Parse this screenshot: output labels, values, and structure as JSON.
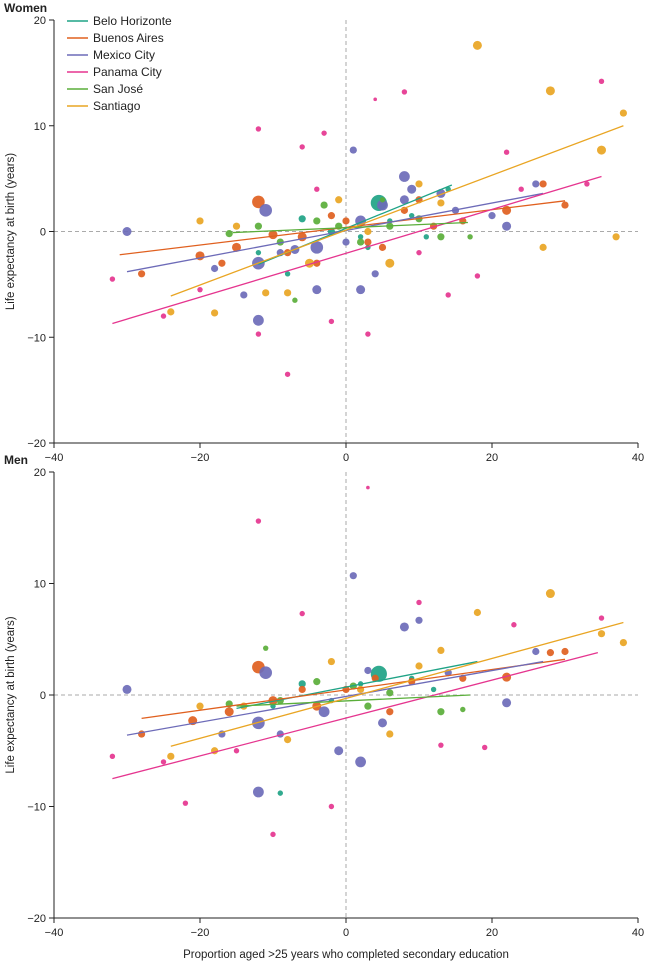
{
  "chart_data": [
    {
      "type": "scatter",
      "title": "Women",
      "xlabel": "Proportion aged >25 years who completed secondary education",
      "ylabel": "Life expectancy at birth (years)",
      "xlim": [
        -40,
        40
      ],
      "ylim": [
        -20,
        20
      ],
      "xticks": [
        "−40",
        "−20",
        "0",
        "20",
        "40"
      ],
      "yticks": [
        "20",
        "10",
        "0",
        "−10",
        "−20"
      ],
      "legend_position": "top-left",
      "series": [
        {
          "name": "Belo Horizonte",
          "color": "#1fa386",
          "line": [
            [
              -12,
              -3.1
            ],
            [
              14.5,
              4.4
            ]
          ],
          "points": [
            [
              4.5,
              2.7,
              9
            ],
            [
              -6,
              1.2,
              4
            ],
            [
              -2,
              0,
              4
            ],
            [
              9,
              1.5,
              3
            ],
            [
              3,
              -1.5,
              3
            ],
            [
              -12,
              -2,
              3
            ],
            [
              11,
              -0.5,
              3
            ],
            [
              14,
              4,
              3
            ],
            [
              -8,
              -4,
              3
            ],
            [
              2,
              -0.5,
              3
            ],
            [
              6,
              1,
              3
            ]
          ]
        },
        {
          "name": "Buenos Aires",
          "color": "#e0601f",
          "line": [
            [
              -31,
              -2.2
            ],
            [
              30,
              2.9
            ]
          ],
          "points": [
            [
              -12,
              2.8,
              7
            ],
            [
              -28,
              -4,
              4
            ],
            [
              -20,
              -2.3,
              5
            ],
            [
              -15,
              -1.5,
              5
            ],
            [
              -10,
              -0.3,
              5
            ],
            [
              -6,
              -0.5,
              5
            ],
            [
              -4,
              -3,
              4
            ],
            [
              0,
              1,
              4
            ],
            [
              3,
              -1,
              4
            ],
            [
              8,
              2,
              4
            ],
            [
              12,
              0.5,
              4
            ],
            [
              16,
              1,
              4
            ],
            [
              22,
              2,
              5
            ],
            [
              27,
              4.5,
              4
            ],
            [
              30,
              2.5,
              4
            ],
            [
              -17,
              -3,
              4
            ],
            [
              -8,
              -2,
              4
            ],
            [
              5,
              -1.5,
              4
            ],
            [
              10,
              3,
              4
            ],
            [
              -2,
              1.5,
              4
            ]
          ]
        },
        {
          "name": "Mexico City",
          "color": "#6d6bb8",
          "line": [
            [
              -30,
              -3.8
            ],
            [
              27,
              3.6
            ]
          ],
          "points": [
            [
              -30,
              0,
              5
            ],
            [
              -11,
              2,
              7
            ],
            [
              -12,
              -3,
              7
            ],
            [
              -12,
              -8.4,
              6
            ],
            [
              -4,
              -1.5,
              7
            ],
            [
              -7,
              -1.7,
              5
            ],
            [
              2,
              1,
              6
            ],
            [
              5,
              2.5,
              6
            ],
            [
              8,
              5.2,
              6
            ],
            [
              8,
              3,
              5
            ],
            [
              9,
              4,
              5
            ],
            [
              -4,
              -5.5,
              5
            ],
            [
              2,
              -5.5,
              5
            ],
            [
              1,
              7.7,
              4
            ],
            [
              13,
              3.6,
              5
            ],
            [
              -14,
              -6,
              4
            ],
            [
              20,
              1.5,
              4
            ],
            [
              26,
              4.5,
              4
            ],
            [
              22,
              0.5,
              5
            ],
            [
              -18,
              -3.5,
              4
            ],
            [
              4,
              -4,
              4
            ],
            [
              0,
              -1,
              4
            ],
            [
              -9,
              -2,
              4
            ],
            [
              15,
              2,
              4
            ]
          ]
        },
        {
          "name": "Panama City",
          "color": "#e5358f",
          "line": [
            [
              -32,
              -8.7
            ],
            [
              35,
              5.2
            ]
          ],
          "points": [
            [
              -32,
              -4.5,
              3
            ],
            [
              -25,
              -8,
              3
            ],
            [
              -12,
              9.7,
              3
            ],
            [
              -6,
              8,
              3
            ],
            [
              -3,
              9.3,
              3
            ],
            [
              -8,
              -13.5,
              3
            ],
            [
              4,
              12.5,
              2
            ],
            [
              8,
              13.2,
              3
            ],
            [
              35,
              14.2,
              3
            ],
            [
              22,
              7.5,
              3
            ],
            [
              33,
              4.5,
              3
            ],
            [
              18,
              -4.2,
              3
            ],
            [
              -2,
              -8.5,
              3
            ],
            [
              3,
              -9.7,
              3
            ],
            [
              -12,
              -9.7,
              3
            ],
            [
              10,
              -2,
              3
            ],
            [
              24,
              4,
              3
            ],
            [
              -20,
              -5.5,
              3
            ],
            [
              14,
              -6,
              3
            ],
            [
              -4,
              4,
              3
            ]
          ]
        },
        {
          "name": "San José",
          "color": "#5aae3a",
          "line": [
            [
              -15.5,
              -0.1
            ],
            [
              16.7,
              0.85
            ]
          ],
          "points": [
            [
              -16,
              -0.2,
              4
            ],
            [
              -9,
              -1,
              4
            ],
            [
              -4,
              1,
              4
            ],
            [
              -1,
              0.5,
              4
            ],
            [
              2,
              -1,
              4
            ],
            [
              6,
              0.5,
              4
            ],
            [
              10,
              1.2,
              4
            ],
            [
              13,
              -0.5,
              4
            ],
            [
              -7,
              -6.5,
              3
            ],
            [
              -3,
              2.5,
              4
            ],
            [
              17,
              -0.5,
              3
            ],
            [
              -12,
              0.5,
              4
            ],
            [
              5,
              3,
              3
            ]
          ]
        },
        {
          "name": "Santiago",
          "color": "#e9a523",
          "line": [
            [
              -24,
              -6.1
            ],
            [
              38,
              10
            ]
          ],
          "points": [
            [
              18,
              17.6,
              5
            ],
            [
              28,
              13.3,
              5
            ],
            [
              38,
              11.2,
              4
            ],
            [
              35,
              7.7,
              5
            ],
            [
              -24,
              -7.6,
              4
            ],
            [
              -18,
              -7.7,
              4
            ],
            [
              -8,
              -5.8,
              4
            ],
            [
              -11,
              -5.8,
              4
            ],
            [
              -1,
              3,
              4
            ],
            [
              -5,
              -3,
              5
            ],
            [
              10,
              4.5,
              4
            ],
            [
              6,
              -3,
              5
            ],
            [
              -15,
              0.5,
              4
            ],
            [
              27,
              -1.5,
              4
            ],
            [
              37,
              -0.5,
              4
            ],
            [
              -20,
              1,
              4
            ],
            [
              13,
              2.7,
              4
            ],
            [
              3,
              0,
              4
            ]
          ]
        }
      ]
    },
    {
      "type": "scatter",
      "title": "Men",
      "xlabel": "Proportion aged >25 years who completed secondary education",
      "ylabel": "Life expectancy at birth (years)",
      "xlim": [
        -40,
        40
      ],
      "ylim": [
        -20,
        20
      ],
      "xticks": [
        "−40",
        "−20",
        "0",
        "20",
        "40"
      ],
      "yticks": [
        "20",
        "10",
        "0",
        "−10",
        "−20"
      ],
      "series": [
        {
          "name": "Belo Horizonte",
          "color": "#1fa386",
          "line": [
            [
              -15,
              -1.2
            ],
            [
              18,
              3
            ]
          ],
          "points": [
            [
              4.5,
              1.9,
              9
            ],
            [
              -6,
              1,
              4
            ],
            [
              -2,
              -0.5,
              3
            ],
            [
              9,
              1.5,
              3
            ],
            [
              12,
              0.5,
              3
            ],
            [
              -10,
              -1,
              3
            ],
            [
              2,
              1,
              3
            ],
            [
              -9,
              -8.8,
              3
            ]
          ]
        },
        {
          "name": "Buenos Aires",
          "color": "#e0601f",
          "line": [
            [
              -28,
              -2.1
            ],
            [
              30,
              3.2
            ]
          ],
          "points": [
            [
              -12,
              2.5,
              7
            ],
            [
              -28,
              -3.5,
              4
            ],
            [
              -21,
              -2.3,
              5
            ],
            [
              -16,
              -1.5,
              5
            ],
            [
              -10,
              -0.5,
              5
            ],
            [
              -4,
              -1,
              5
            ],
            [
              0,
              0.5,
              4
            ],
            [
              4,
              1.5,
              4
            ],
            [
              9,
              1.2,
              4
            ],
            [
              16,
              1.5,
              4
            ],
            [
              22,
              1.6,
              5
            ],
            [
              28,
              3.8,
              4
            ],
            [
              30,
              3.9,
              4
            ],
            [
              -6,
              0.5,
              4
            ],
            [
              6,
              -1.5,
              4
            ]
          ]
        },
        {
          "name": "Mexico City",
          "color": "#6d6bb8",
          "line": [
            [
              -30,
              -3.6
            ],
            [
              27,
              3
            ]
          ],
          "points": [
            [
              -30,
              0.5,
              5
            ],
            [
              -11,
              2,
              7
            ],
            [
              -12,
              -2.5,
              7
            ],
            [
              -12,
              -8.7,
              6
            ],
            [
              -3,
              -1.5,
              6
            ],
            [
              2,
              -6,
              6
            ],
            [
              1,
              10.7,
              4
            ],
            [
              8,
              6.1,
              5
            ],
            [
              10,
              6.7,
              4
            ],
            [
              -1,
              -5,
              5
            ],
            [
              5,
              -2.5,
              5
            ],
            [
              22,
              -0.7,
              5
            ],
            [
              26,
              3.9,
              4
            ],
            [
              -9,
              -3.5,
              4
            ],
            [
              -17,
              -3.5,
              4
            ],
            [
              14,
              2,
              4
            ],
            [
              3,
              2.2,
              4
            ]
          ]
        },
        {
          "name": "Panama City",
          "color": "#e5358f",
          "line": [
            [
              -32,
              -7.5
            ],
            [
              34.5,
              3.8
            ]
          ],
          "points": [
            [
              -32,
              -5.5,
              3
            ],
            [
              -12,
              15.6,
              3
            ],
            [
              3,
              18.6,
              2
            ],
            [
              -22,
              -9.7,
              3
            ],
            [
              -10,
              -12.5,
              3
            ],
            [
              -2,
              -10,
              3
            ],
            [
              35,
              6.9,
              3
            ],
            [
              23,
              6.3,
              3
            ],
            [
              -6,
              7.3,
              3
            ],
            [
              19,
              -4.7,
              3
            ],
            [
              10,
              8.3,
              3
            ],
            [
              -25,
              -6,
              3
            ],
            [
              13,
              -4.5,
              3
            ],
            [
              -15,
              -5,
              3
            ]
          ]
        },
        {
          "name": "San José",
          "color": "#5aae3a",
          "line": [
            [
              -15,
              -1
            ],
            [
              17,
              0
            ]
          ],
          "points": [
            [
              -16,
              -0.8,
              4
            ],
            [
              -9,
              -0.5,
              4
            ],
            [
              -4,
              1.2,
              4
            ],
            [
              1,
              0.8,
              4
            ],
            [
              6,
              0.2,
              4
            ],
            [
              13,
              -1.5,
              4
            ],
            [
              -11,
              4.2,
              3
            ],
            [
              16,
              -1.3,
              3
            ],
            [
              3,
              -1,
              4
            ]
          ]
        },
        {
          "name": "Santiago",
          "color": "#e9a523",
          "line": [
            [
              -24,
              -4.6
            ],
            [
              38,
              6.5
            ]
          ],
          "points": [
            [
              28,
              9.1,
              5
            ],
            [
              18,
              7.4,
              4
            ],
            [
              38,
              4.7,
              4
            ],
            [
              35,
              5.5,
              4
            ],
            [
              -24,
              -5.5,
              4
            ],
            [
              -18,
              -5,
              4
            ],
            [
              -8,
              -4,
              4
            ],
            [
              -2,
              3,
              4
            ],
            [
              10,
              2.6,
              4
            ],
            [
              6,
              -3.5,
              4
            ],
            [
              -14,
              -1,
              4
            ],
            [
              -20,
              -1,
              4
            ],
            [
              13,
              4,
              4
            ],
            [
              2,
              0.5,
              4
            ]
          ]
        }
      ]
    }
  ]
}
